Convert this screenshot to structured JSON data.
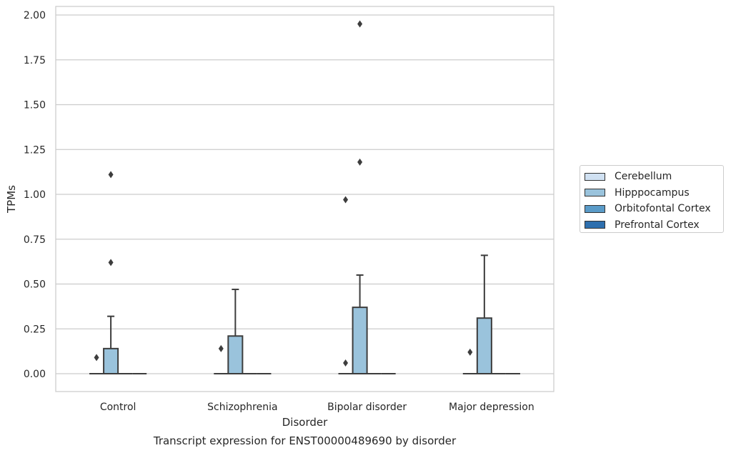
{
  "chart_data": {
    "type": "box",
    "title": "Transcript expression for ENST00000489690 by disorder",
    "xlabel": "Disorder",
    "ylabel": "TPMs",
    "ylim": [
      -0.1,
      2.05
    ],
    "yticks": [
      "0.00",
      "0.25",
      "0.50",
      "0.75",
      "1.00",
      "1.25",
      "1.50",
      "1.75",
      "2.00"
    ],
    "categories": [
      "Control",
      "Schizophrenia",
      "Bipolar disorder",
      "Major depression"
    ],
    "grid": true,
    "legend_position": "right",
    "series": [
      {
        "name": "Cerebellum",
        "color": "#d0e1f2",
        "boxes": [
          {
            "q1": 0,
            "median": 0,
            "q3": 0,
            "whisker_low": 0,
            "whisker_high": 0,
            "outliers": [
              0.09
            ]
          },
          {
            "q1": 0,
            "median": 0,
            "q3": 0,
            "whisker_low": 0,
            "whisker_high": 0,
            "outliers": [
              0.14
            ]
          },
          {
            "q1": 0,
            "median": 0,
            "q3": 0,
            "whisker_low": 0,
            "whisker_high": 0,
            "outliers": [
              0.06,
              0.97
            ]
          },
          {
            "q1": 0,
            "median": 0,
            "q3": 0,
            "whisker_low": 0,
            "whisker_high": 0,
            "outliers": [
              0.12
            ]
          }
        ]
      },
      {
        "name": "Hipppocampus",
        "color": "#9ac3dc",
        "boxes": [
          {
            "q1": 0,
            "median": 0,
            "q3": 0.14,
            "whisker_low": 0,
            "whisker_high": 0.32,
            "outliers": [
              0.62,
              1.11
            ]
          },
          {
            "q1": 0,
            "median": 0,
            "q3": 0.21,
            "whisker_low": 0,
            "whisker_high": 0.47,
            "outliers": []
          },
          {
            "q1": 0,
            "median": 0,
            "q3": 0.37,
            "whisker_low": 0,
            "whisker_high": 0.55,
            "outliers": [
              1.18,
              1.95
            ]
          },
          {
            "q1": 0,
            "median": 0,
            "q3": 0.31,
            "whisker_low": 0,
            "whisker_high": 0.66,
            "outliers": []
          }
        ]
      },
      {
        "name": "Orbitofontal Cortex",
        "color": "#5a9bc8",
        "boxes": [
          {
            "q1": 0,
            "median": 0,
            "q3": 0,
            "whisker_low": 0,
            "whisker_high": 0,
            "outliers": []
          },
          {
            "q1": 0,
            "median": 0,
            "q3": 0,
            "whisker_low": 0,
            "whisker_high": 0,
            "outliers": []
          },
          {
            "q1": 0,
            "median": 0,
            "q3": 0,
            "whisker_low": 0,
            "whisker_high": 0,
            "outliers": []
          },
          {
            "q1": 0,
            "median": 0,
            "q3": 0,
            "whisker_low": 0,
            "whisker_high": 0,
            "outliers": []
          }
        ]
      },
      {
        "name": "Prefrontal Cortex",
        "color": "#2e6fae",
        "boxes": [
          {
            "q1": 0,
            "median": 0,
            "q3": 0,
            "whisker_low": 0,
            "whisker_high": 0,
            "outliers": []
          },
          {
            "q1": 0,
            "median": 0,
            "q3": 0,
            "whisker_low": 0,
            "whisker_high": 0,
            "outliers": []
          },
          {
            "q1": 0,
            "median": 0,
            "q3": 0,
            "whisker_low": 0,
            "whisker_high": 0,
            "outliers": []
          },
          {
            "q1": 0,
            "median": 0,
            "q3": 0,
            "whisker_low": 0,
            "whisker_high": 0,
            "outliers": []
          }
        ]
      }
    ]
  }
}
